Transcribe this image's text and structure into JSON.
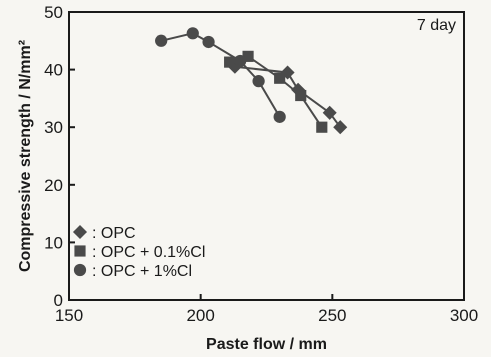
{
  "chart_data": {
    "type": "line",
    "xlabel": "Paste flow / mm",
    "ylabel": "Compressive strength / N/mm²",
    "xlim": [
      150,
      300
    ],
    "ylim": [
      0,
      50
    ],
    "xticks": [
      "150",
      "200",
      "250",
      "300"
    ],
    "yticks": [
      "0",
      "10",
      "20",
      "30",
      "40",
      "50"
    ],
    "annotation": "7 day",
    "legend_position": "bottom-left",
    "grid": false,
    "series": [
      {
        "name": ": OPC",
        "marker": "diamond-icon",
        "color": "#4a4a4a",
        "points": [
          [
            213,
            40.5
          ],
          [
            233,
            39.5
          ],
          [
            237,
            36.5
          ],
          [
            249,
            32.5
          ],
          [
            253,
            30
          ]
        ]
      },
      {
        "name": ": OPC + 0.1%Cl",
        "marker": "square-icon",
        "color": "#4a4a4a",
        "points": [
          [
            211,
            41.3
          ],
          [
            218,
            42.3
          ],
          [
            230,
            38.5
          ],
          [
            238,
            35.5
          ],
          [
            246,
            30
          ]
        ]
      },
      {
        "name": ": OPC + 1%Cl",
        "marker": "circle-icon",
        "color": "#4a4a4a",
        "points": [
          [
            185,
            45
          ],
          [
            197,
            46.3
          ],
          [
            203,
            44.8
          ],
          [
            215,
            41.5
          ],
          [
            222,
            38
          ],
          [
            230,
            31.8
          ]
        ]
      }
    ]
  }
}
